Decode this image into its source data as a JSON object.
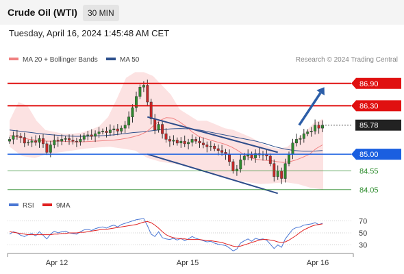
{
  "header": {
    "title": "Crude Oil (WTI)",
    "interval": "30 MIN",
    "datetime": "Tuesday, April 16, 2024 1:45:48 AM CET"
  },
  "legend": {
    "ma20_label": "MA 20 + Bollinger Bands",
    "ma50_label": "MA 50",
    "ma20_color": "#f08080",
    "ma50_color": "#2c4f8c",
    "credit": "Research © 2024 Trading Central"
  },
  "rsi_legend": {
    "rsi_label": "RSI",
    "ma_label": "9MA",
    "rsi_color": "#4a77d4",
    "ma_color": "#e02020"
  },
  "chart_data": [
    {
      "type": "candlestick",
      "x_tick_labels": [
        "Apr 12",
        "Apr 15",
        "Apr 16"
      ],
      "y_range": [
        83.9,
        87.3
      ],
      "levels": [
        {
          "value": 86.9,
          "label": "86.90",
          "kind": "resistance",
          "color": "#e01010"
        },
        {
          "value": 86.3,
          "label": "86.30",
          "kind": "resistance",
          "color": "#e01010"
        },
        {
          "value": 85.78,
          "label": "85.78",
          "kind": "last-price",
          "color": "#222222"
        },
        {
          "value": 85.0,
          "label": "85.00",
          "kind": "pivot",
          "color": "#1a5fe0"
        },
        {
          "value": 84.55,
          "label": "84.55",
          "kind": "support",
          "color": "#2a8a2a"
        },
        {
          "value": 84.05,
          "label": "84.05",
          "kind": "support",
          "color": "#2a8a2a"
        }
      ],
      "close_series": [
        85.4,
        85.5,
        85.48,
        85.45,
        85.3,
        85.32,
        85.36,
        85.32,
        85.42,
        85.28,
        85.05,
        85.25,
        85.38,
        85.35,
        85.4,
        85.42,
        85.38,
        85.35,
        85.34,
        85.4,
        85.5,
        85.52,
        85.48,
        85.55,
        85.6,
        85.62,
        85.58,
        85.65,
        85.68,
        85.62,
        85.7,
        85.78,
        86.0,
        86.25,
        86.55,
        86.8,
        86.85,
        86.4,
        85.95,
        85.65,
        85.8,
        85.55,
        85.4,
        85.35,
        85.38,
        85.3,
        85.35,
        85.28,
        85.32,
        85.4,
        85.35,
        85.3,
        85.25,
        85.2,
        85.22,
        85.15,
        85.1,
        85.05,
        85.0,
        84.8,
        84.55,
        84.6,
        84.85,
        84.95,
        85.0,
        84.9,
        85.02,
        84.98,
        85.0,
        84.95,
        84.75,
        84.4,
        84.55,
        84.35,
        84.75,
        85.0,
        85.3,
        85.4,
        85.42,
        85.55,
        85.6,
        85.62,
        85.78,
        85.7,
        85.78
      ],
      "ma20_series": [
        85.5,
        85.47,
        85.44,
        85.4,
        85.38,
        85.36,
        85.35,
        85.35,
        85.35,
        85.34,
        85.33,
        85.33,
        85.34,
        85.35,
        85.36,
        85.37,
        85.38,
        85.4,
        85.43,
        85.47,
        85.52,
        85.6,
        85.75,
        85.9,
        85.98,
        85.97,
        85.88,
        85.75,
        85.6,
        85.48,
        85.42,
        85.37,
        85.32,
        85.27,
        85.2,
        85.1,
        84.98,
        84.9,
        84.86,
        84.84,
        84.83,
        84.8,
        84.78,
        84.8,
        84.85,
        84.92,
        85.0,
        85.15,
        85.25
      ],
      "ma50_series": [
        85.65,
        85.62,
        85.59,
        85.56,
        85.53,
        85.51,
        85.49,
        85.48,
        85.48,
        85.49,
        85.5,
        85.52,
        85.55,
        85.58,
        85.6,
        85.63,
        85.66,
        85.68,
        85.69,
        85.68,
        85.65,
        85.6,
        85.55,
        85.5,
        85.45,
        85.4,
        85.35,
        85.28,
        85.2,
        85.14,
        85.1,
        85.08,
        85.08,
        85.1
      ],
      "bollinger_upper": [
        85.9,
        86.4,
        86.3,
        85.9,
        85.65,
        85.6,
        85.55,
        85.55,
        85.58,
        85.65,
        85.75,
        86.0,
        86.5,
        87.05,
        87.2,
        87.2,
        87.1,
        86.85,
        86.6,
        86.2,
        86.05,
        85.9,
        85.9,
        85.8,
        85.7,
        85.65,
        85.55,
        85.45,
        85.3,
        85.2,
        85.15,
        85.2,
        85.4,
        85.6,
        85.85,
        85.95
      ],
      "bollinger_lower": [
        85.2,
        84.95,
        84.9,
        85.0,
        85.05,
        85.1,
        85.15,
        85.18,
        85.2,
        85.15,
        85.1,
        84.9,
        84.8,
        84.75,
        84.7,
        84.6,
        84.5,
        84.4,
        84.3,
        84.25,
        84.2,
        84.22,
        84.25,
        84.2,
        84.1,
        84.05
      ],
      "trendlines": [
        {
          "from": {
            "bar": 37,
            "price": 86.0
          },
          "to": {
            "bar": 72,
            "price": 85.05
          }
        },
        {
          "from": {
            "bar": 37,
            "price": 85.0
          },
          "to": {
            "bar": 72,
            "price": 83.95
          }
        }
      ],
      "projection": {
        "from": {
          "bar": 77,
          "price": 85.78
        },
        "to": {
          "bar": 83,
          "price": 86.8
        },
        "color": "#2c5ea8"
      }
    },
    {
      "type": "line",
      "name": "RSI",
      "y_tick_labels": [
        "70",
        "50",
        "30"
      ],
      "y_range": [
        18,
        82
      ],
      "rsi_series": [
        48,
        52,
        50,
        46,
        44,
        47,
        49,
        45,
        52,
        46,
        40,
        48,
        53,
        50,
        52,
        53,
        50,
        49,
        48,
        52,
        55,
        56,
        54,
        57,
        59,
        60,
        58,
        61,
        63,
        60,
        64,
        66,
        68,
        70,
        72,
        73,
        74,
        62,
        48,
        44,
        52,
        42,
        40,
        39,
        41,
        38,
        41,
        37,
        40,
        44,
        41,
        39,
        37,
        35,
        36,
        33,
        31,
        30,
        29,
        25,
        20,
        23,
        33,
        37,
        40,
        36,
        41,
        39,
        40,
        38,
        31,
        24,
        30,
        26,
        40,
        48,
        56,
        59,
        60,
        63,
        64,
        65,
        67,
        64,
        66
      ],
      "ma9_series": [
        52,
        51,
        50,
        49,
        48,
        47,
        47,
        47,
        47,
        47,
        47,
        47,
        48,
        48,
        49,
        49,
        50,
        50,
        50,
        51,
        51,
        52,
        53,
        54,
        55,
        56,
        56,
        57,
        58,
        59,
        60,
        61,
        62,
        63,
        64,
        66,
        68,
        69,
        67,
        63,
        58,
        52,
        47,
        44,
        42,
        41,
        40,
        40,
        39,
        39,
        39,
        39,
        38,
        37,
        37,
        36,
        35,
        34,
        32,
        30,
        28,
        27,
        28,
        30,
        32,
        34,
        36,
        38,
        39,
        39,
        38,
        37,
        35,
        34,
        35,
        38,
        42,
        46,
        51,
        55,
        58,
        61,
        63,
        64,
        65
      ]
    }
  ]
}
